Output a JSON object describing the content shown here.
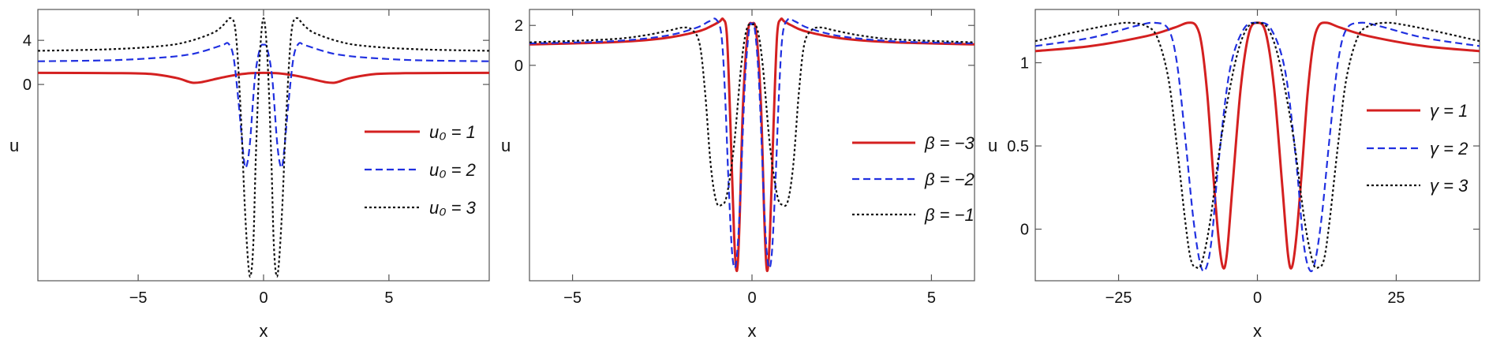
{
  "chart_data": [
    {
      "type": "line",
      "title": "",
      "xlabel": "x",
      "ylabel": "u",
      "xlim": [
        -9,
        9
      ],
      "ylim": [
        -17.8,
        6.8
      ],
      "xticks": [
        -5,
        0,
        5
      ],
      "yticks": [
        0,
        4
      ],
      "legend_position": "right",
      "series": [
        {
          "name": "u₀ = 1",
          "legend_label": "u₀ = 1",
          "color": "#d42020",
          "dash": "solid",
          "x": [
            -9,
            -6,
            -4.5,
            -3.5,
            -3.0,
            -2.8,
            -2.5,
            -2.0,
            -1.5,
            -1.0,
            -0.5,
            0,
            0.5,
            1.0,
            1.5,
            2.0,
            2.5,
            2.8,
            3.0,
            3.5,
            4.5,
            6,
            9
          ],
          "y": [
            1.05,
            1.03,
            0.95,
            0.6,
            0.25,
            0.15,
            0.2,
            0.45,
            0.7,
            0.9,
            1.02,
            1.05,
            1.02,
            0.9,
            0.7,
            0.45,
            0.2,
            0.15,
            0.25,
            0.6,
            0.95,
            1.03,
            1.05
          ]
        },
        {
          "name": "u₀ = 2",
          "legend_label": "u₀ = 2",
          "color": "#2030e0",
          "dash": "dashed",
          "x": [
            -9,
            -6,
            -4,
            -3,
            -2.5,
            -2,
            -1.6,
            -1.4,
            -1.2,
            -1.0,
            -0.8,
            -0.7,
            -0.55,
            -0.35,
            -0.15,
            0,
            0.15,
            0.35,
            0.55,
            0.7,
            0.8,
            1.0,
            1.2,
            1.4,
            1.6,
            2,
            2.5,
            3,
            4,
            6,
            9
          ],
          "y": [
            2.1,
            2.2,
            2.45,
            2.7,
            2.95,
            3.3,
            3.6,
            3.7,
            2.5,
            -1.5,
            -6.5,
            -7.5,
            -5.5,
            0.5,
            3.2,
            3.6,
            3.2,
            0.5,
            -5.5,
            -7.5,
            -6.5,
            -1.5,
            2.5,
            3.7,
            3.6,
            3.3,
            2.95,
            2.7,
            2.45,
            2.2,
            2.1
          ]
        },
        {
          "name": "u₀ = 3",
          "legend_label": "u₀ = 3",
          "color": "#111111",
          "dash": "dotted",
          "x": [
            -9,
            -6,
            -4,
            -3,
            -2,
            -1.6,
            -1.3,
            -1.1,
            -0.9,
            -0.75,
            -0.6,
            -0.5,
            -0.4,
            -0.3,
            -0.15,
            0,
            0.15,
            0.3,
            0.4,
            0.5,
            0.6,
            0.75,
            0.9,
            1.1,
            1.3,
            1.6,
            2,
            3,
            4,
            6,
            9
          ],
          "y": [
            3.05,
            3.2,
            3.5,
            3.9,
            4.7,
            5.4,
            6.0,
            4.5,
            -3,
            -11,
            -16.5,
            -17.2,
            -14,
            -6,
            2.5,
            6.0,
            2.5,
            -6,
            -14,
            -17.2,
            -16.5,
            -11,
            -3,
            4.5,
            6.0,
            5.4,
            4.7,
            3.9,
            3.5,
            3.2,
            3.05
          ]
        }
      ]
    },
    {
      "type": "line",
      "title": "",
      "xlabel": "x",
      "ylabel": "u",
      "xlim": [
        -6.2,
        6.2
      ],
      "ylim": [
        -10.8,
        2.8
      ],
      "xticks": [
        -5,
        0,
        5
      ],
      "yticks": [
        0,
        2
      ],
      "legend_position": "right",
      "series": [
        {
          "name": "β = −3",
          "legend_label": "β = −3",
          "color": "#d42020",
          "dash": "solid",
          "x": [
            -6.2,
            -4,
            -2.5,
            -1.5,
            -1.1,
            -0.9,
            -0.8,
            -0.7,
            -0.6,
            -0.5,
            -0.42,
            -0.35,
            -0.25,
            -0.12,
            0,
            0.12,
            0.25,
            0.35,
            0.42,
            0.5,
            0.6,
            0.7,
            0.8,
            0.9,
            1.1,
            1.5,
            2.5,
            4,
            6.2
          ],
          "y": [
            1.05,
            1.15,
            1.35,
            1.7,
            2.0,
            2.2,
            2.3,
            1.5,
            -3,
            -8.5,
            -10.3,
            -8,
            -2,
            1.6,
            2.1,
            1.6,
            -2,
            -8,
            -10.3,
            -8.5,
            -3,
            1.5,
            2.3,
            2.2,
            2.0,
            1.7,
            1.35,
            1.15,
            1.05
          ]
        },
        {
          "name": "β = −2",
          "legend_label": "β = −2",
          "color": "#2030e0",
          "dash": "dashed",
          "x": [
            -6.2,
            -4,
            -2.5,
            -1.6,
            -1.2,
            -1.0,
            -0.85,
            -0.75,
            -0.65,
            -0.55,
            -0.45,
            -0.35,
            -0.2,
            -0.08,
            0,
            0.08,
            0.2,
            0.35,
            0.45,
            0.55,
            0.65,
            0.75,
            0.85,
            1.0,
            1.2,
            1.6,
            2.5,
            4,
            6.2
          ],
          "y": [
            1.1,
            1.2,
            1.45,
            1.85,
            2.2,
            2.3,
            1.5,
            -1.5,
            -6,
            -9.5,
            -10.0,
            -7.5,
            -1,
            1.8,
            2.05,
            1.8,
            -1,
            -7.5,
            -10.0,
            -9.5,
            -6,
            -1.5,
            1.5,
            2.3,
            2.2,
            1.85,
            1.45,
            1.2,
            1.1
          ]
        },
        {
          "name": "β = −1",
          "legend_label": "β = −1",
          "color": "#111111",
          "dash": "dotted",
          "x": [
            -6.2,
            -4,
            -3,
            -2.3,
            -1.9,
            -1.65,
            -1.45,
            -1.3,
            -1.15,
            -1.0,
            -0.85,
            -0.7,
            -0.5,
            -0.3,
            -0.15,
            0,
            0.15,
            0.3,
            0.5,
            0.7,
            0.85,
            1.0,
            1.15,
            1.3,
            1.45,
            1.65,
            1.9,
            2.3,
            3,
            4,
            6.2
          ],
          "y": [
            1.15,
            1.3,
            1.5,
            1.75,
            1.9,
            1.75,
            1.0,
            -1.5,
            -5,
            -6.8,
            -7.0,
            -6.5,
            -4,
            0,
            1.8,
            2.05,
            1.8,
            0,
            -4,
            -6.5,
            -7.0,
            -6.8,
            -5,
            -1.5,
            1.0,
            1.75,
            1.9,
            1.75,
            1.5,
            1.3,
            1.15
          ]
        }
      ]
    },
    {
      "type": "line",
      "title": "",
      "xlabel": "x",
      "ylabel": "u",
      "xlim": [
        -40,
        40
      ],
      "ylim": [
        -0.31,
        1.32
      ],
      "xticks": [
        -25,
        0,
        25
      ],
      "yticks": [
        0,
        0.5,
        1
      ],
      "legend_position": "right",
      "series": [
        {
          "name": "γ = 1",
          "legend_label": "γ = 1",
          "color": "#d42020",
          "dash": "solid",
          "x": [
            -40,
            -30,
            -20,
            -15,
            -12.5,
            -11,
            -10,
            -9,
            -8,
            -7,
            -6.2,
            -5.5,
            -4.5,
            -3,
            -1.5,
            0,
            1.5,
            3,
            4.5,
            5.5,
            6.2,
            7,
            8,
            9,
            10,
            11,
            12.5,
            15,
            20,
            30,
            40
          ],
          "y": [
            1.07,
            1.1,
            1.16,
            1.21,
            1.24,
            1.22,
            1.1,
            0.8,
            0.35,
            -0.05,
            -0.23,
            -0.15,
            0.25,
            0.85,
            1.18,
            1.24,
            1.18,
            0.85,
            0.25,
            -0.15,
            -0.23,
            -0.05,
            0.35,
            0.8,
            1.1,
            1.22,
            1.24,
            1.21,
            1.16,
            1.1,
            1.07
          ]
        },
        {
          "name": "γ = 2",
          "legend_label": "γ = 2",
          "color": "#2030e0",
          "dash": "dashed",
          "x": [
            -40,
            -30,
            -22,
            -18.5,
            -16,
            -14.5,
            -13,
            -11.5,
            -10.2,
            -9.2,
            -8.2,
            -7,
            -5,
            -2.5,
            0,
            2.5,
            5,
            7,
            8.2,
            9.2,
            10.2,
            11.5,
            13,
            14.5,
            16,
            18.5,
            22,
            30,
            40
          ],
          "y": [
            1.1,
            1.15,
            1.22,
            1.24,
            1.2,
            1.0,
            0.55,
            0.05,
            -0.22,
            -0.23,
            -0.05,
            0.4,
            0.95,
            1.2,
            1.24,
            1.2,
            0.95,
            0.4,
            -0.05,
            -0.23,
            -0.22,
            0.05,
            0.55,
            1.0,
            1.2,
            1.24,
            1.22,
            1.15,
            1.1
          ]
        },
        {
          "name": "γ = 3",
          "legend_label": "γ = 3",
          "color": "#111111",
          "dash": "dotted",
          "x": [
            -40,
            -32,
            -26,
            -23,
            -20,
            -18,
            -16,
            -14.5,
            -13,
            -12,
            -11,
            -10,
            -8.5,
            -6.5,
            -4,
            -2,
            0,
            2,
            4,
            6.5,
            8.5,
            10,
            11,
            12,
            13,
            14.5,
            16,
            18,
            20,
            23,
            26,
            32,
            40
          ],
          "y": [
            1.13,
            1.19,
            1.23,
            1.24,
            1.22,
            1.15,
            0.9,
            0.5,
            0.05,
            -0.18,
            -0.23,
            -0.2,
            0.05,
            0.55,
            1.0,
            1.2,
            1.24,
            1.2,
            1.0,
            0.55,
            0.05,
            -0.2,
            -0.23,
            -0.18,
            0.05,
            0.5,
            0.9,
            1.15,
            1.22,
            1.24,
            1.23,
            1.19,
            1.13
          ]
        }
      ]
    }
  ]
}
